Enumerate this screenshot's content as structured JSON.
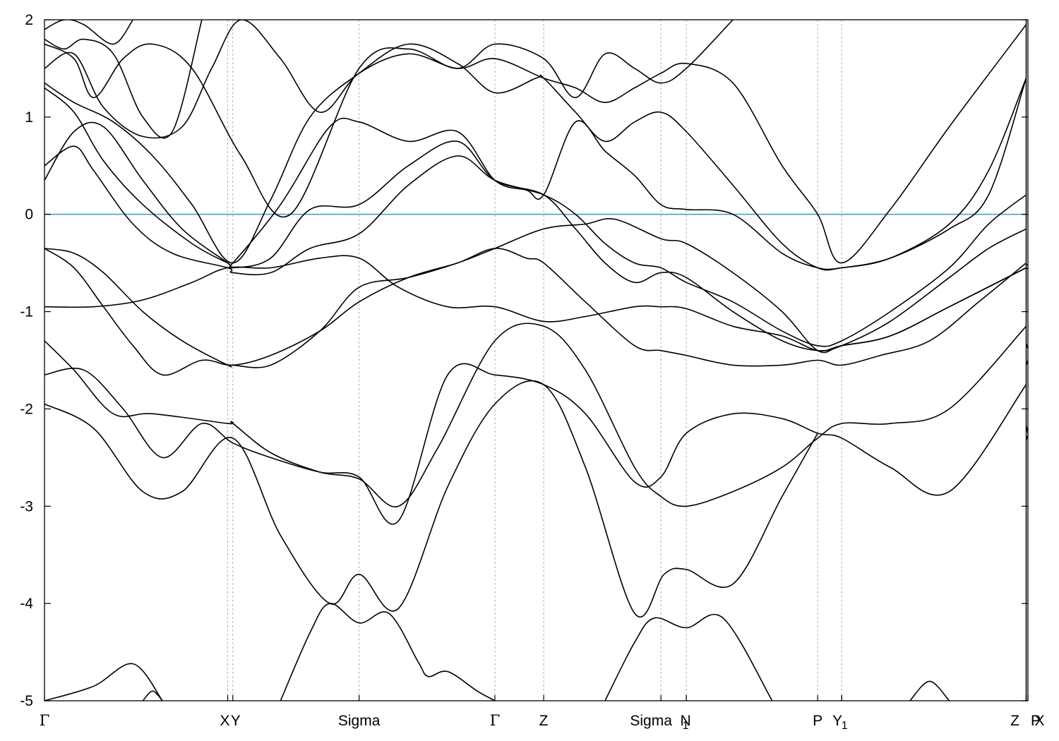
{
  "chart_data": {
    "type": "line",
    "title": "",
    "xlabel": "",
    "ylabel": "",
    "ylim": [
      -5,
      2
    ],
    "xlim": [
      0,
      1
    ],
    "yticks": [
      "2",
      "1",
      "0",
      "-1",
      "-2",
      "-3",
      "-4",
      "-5"
    ],
    "ytick_values": [
      2,
      1,
      0,
      -1,
      -2,
      -3,
      -4,
      -5
    ],
    "kpoints": [
      {
        "label": "Γ",
        "x": 0.0
      },
      {
        "label": "X",
        "x": 0.1863
      },
      {
        "label": "Y",
        "x": 0.1915
      },
      {
        "label": "Sigma",
        "x": 0.3199
      },
      {
        "label": "Γ",
        "x": 0.458
      },
      {
        "label": "Z",
        "x": 0.5076
      },
      {
        "label": "Sigma",
        "x": 0.6268
      },
      {
        "label": "N",
        "x": 0.6526
      },
      {
        "label": "1",
        "x": 0.6526
      },
      {
        "label": "P",
        "x": 0.7862
      },
      {
        "label": "Y",
        "x": 0.8106
      },
      {
        "label": "1",
        "x": 0.8106
      },
      {
        "label": "Z",
        "x": 0.9982
      },
      {
        "label": "X",
        "x": 0.9982
      },
      {
        "label": "P",
        "x": 1.0
      }
    ],
    "fermi_level": 0,
    "grid": false,
    "series": [
      {
        "x": [
          0,
          0.03,
          0.06,
          0.09,
          0.12,
          0.16,
          0.1915,
          0.23,
          0.28,
          0.3199,
          0.37,
          0.42,
          0.458,
          0.49,
          0.5076,
          0.55,
          0.6,
          0.6268,
          0.6526,
          0.7,
          0.75,
          0.7862,
          0.8106,
          0.85,
          0.9,
          0.95,
          0.9982
        ],
        "y": [
          -0.35,
          -0.55,
          -0.95,
          -1.35,
          -1.65,
          -1.5,
          -1.55,
          -1.45,
          -1.2,
          -0.9,
          -0.65,
          -0.5,
          -0.35,
          -0.45,
          -0.5,
          -0.9,
          -1.35,
          -1.4,
          -1.45,
          -1.55,
          -1.55,
          -1.5,
          -1.55,
          -1.45,
          -1.3,
          -0.9,
          -0.5
        ]
      },
      {
        "x": [
          0,
          0.03,
          0.06,
          0.1,
          0.14,
          0.1863,
          0.1915,
          0.23,
          0.28,
          0.3199,
          0.37,
          0.42,
          0.458,
          0.5076,
          0.55,
          0.58,
          0.6268,
          0.6526,
          0.7,
          0.75,
          0.7862,
          0.8106,
          0.86,
          0.92,
          0.9982
        ],
        "y": [
          -0.35,
          -0.4,
          -0.6,
          -1.0,
          -1.3,
          -1.55,
          -1.55,
          -1.55,
          -1.2,
          -0.75,
          -0.65,
          -0.5,
          -0.35,
          -0.15,
          -0.1,
          -0.05,
          -0.25,
          -0.3,
          -0.6,
          -1.0,
          -1.4,
          -1.35,
          -1.25,
          -0.95,
          -0.55
        ]
      },
      {
        "x": [
          0,
          0.05,
          0.1,
          0.15,
          0.1863,
          0.23,
          0.28,
          0.3199,
          0.36,
          0.41,
          0.458,
          0.5076,
          0.55,
          0.6,
          0.6268,
          0.6526,
          0.7,
          0.75,
          0.7862,
          0.8106,
          0.86,
          0.92,
          0.9982
        ],
        "y": [
          -0.95,
          -0.95,
          -0.88,
          -0.7,
          -0.55,
          -0.55,
          -0.45,
          -0.45,
          -0.75,
          -0.95,
          -0.95,
          -1.1,
          -1.05,
          -0.95,
          -0.95,
          -0.97,
          -1.15,
          -1.25,
          -1.4,
          -1.35,
          -1.25,
          -0.95,
          -0.55
        ]
      },
      {
        "x": [
          0,
          0.03,
          0.07,
          0.11,
          0.1863,
          0.1915,
          0.23,
          0.28,
          0.3199,
          0.36,
          0.4,
          0.458,
          0.5076,
          0.55,
          0.6,
          0.6268,
          0.6526,
          0.7,
          0.75,
          0.7862,
          0.8106,
          0.86,
          0.92,
          0.9982
        ],
        "y": [
          -1.3,
          -1.6,
          -2.05,
          -2.05,
          -2.15,
          -2.15,
          -2.45,
          -2.65,
          -2.72,
          -3.0,
          -2.4,
          -1.3,
          -1.15,
          -1.6,
          -2.6,
          -2.9,
          -3.0,
          -2.85,
          -2.6,
          -2.3,
          -2.15,
          -2.15,
          -2.0,
          -1.15
        ]
      },
      {
        "x": [
          0,
          0.04,
          0.08,
          0.12,
          0.16,
          0.1915,
          0.23,
          0.28,
          0.3199,
          0.36,
          0.41,
          0.458,
          0.5076,
          0.55,
          0.6,
          0.6268,
          0.6526,
          0.7,
          0.75,
          0.7862,
          0.8106,
          0.86,
          0.92,
          0.9982
        ],
        "y": [
          -1.65,
          -1.6,
          -2.0,
          -2.5,
          -2.15,
          -2.35,
          -2.5,
          -2.65,
          -2.7,
          -3.15,
          -1.65,
          -1.65,
          -1.75,
          -2.05,
          -2.75,
          -2.7,
          -2.25,
          -2.05,
          -2.1,
          -2.25,
          -2.3,
          -2.6,
          -2.85,
          -1.75
        ]
      },
      {
        "x": [
          0,
          0.05,
          0.1,
          0.14,
          0.1915,
          0.24,
          0.29,
          0.3199,
          0.36,
          0.41,
          0.458,
          0.5076,
          0.55,
          0.6,
          0.63,
          0.6526,
          0.7,
          0.75,
          0.7862
        ],
        "y": [
          -1.95,
          -2.2,
          -2.85,
          -2.85,
          -2.3,
          -3.3,
          -4.0,
          -3.7,
          -4.05,
          -2.8,
          -1.95,
          -1.75,
          -2.6,
          -4.1,
          -3.7,
          -3.65,
          -3.8,
          -2.9,
          -2.25
        ]
      },
      {
        "x": [
          0,
          0.03,
          0.06,
          0.1,
          0.14,
          0.1863,
          0.1915,
          0.23,
          0.27,
          0.3199,
          0.37,
          0.42,
          0.458,
          0.5076,
          0.54,
          0.57,
          0.6,
          0.6268,
          0.6526,
          0.7,
          0.75,
          0.7862,
          0.8106,
          0.86,
          0.92,
          0.96,
          0.9982
        ],
        "y": [
          0.35,
          0.85,
          0.9,
          0.35,
          -0.15,
          -0.5,
          -0.55,
          -0.45,
          0.05,
          0.1,
          0.5,
          0.75,
          0.35,
          0.2,
          -0.15,
          -0.5,
          -0.7,
          -0.6,
          -0.65,
          -1.0,
          -1.3,
          -1.4,
          -1.35,
          -1.1,
          -0.65,
          -0.35,
          -0.15
        ]
      },
      {
        "x": [
          0,
          0.03,
          0.05,
          0.09,
          0.13,
          0.1863,
          0.1915,
          0.23,
          0.27,
          0.3199,
          0.37,
          0.42,
          0.458,
          0.5076,
          0.54,
          0.57,
          0.6,
          0.6268,
          0.6526,
          0.7,
          0.75,
          0.7862,
          0.8106,
          0.86,
          0.92,
          0.96,
          0.9982
        ],
        "y": [
          0.5,
          0.7,
          0.45,
          -0.1,
          -0.4,
          -0.55,
          -0.6,
          -0.6,
          -0.35,
          -0.2,
          0.3,
          0.6,
          0.35,
          0.2,
          0.0,
          -0.3,
          -0.5,
          -0.55,
          -0.7,
          -0.9,
          -1.2,
          -1.35,
          -1.3,
          -1.0,
          -0.55,
          -0.1,
          0.2
        ]
      },
      {
        "x": [
          0,
          0.03,
          0.06,
          0.1,
          0.15,
          0.1863,
          0.1915,
          0.24,
          0.29,
          0.3199,
          0.37,
          0.42,
          0.458,
          0.49,
          0.5076,
          0.54,
          0.57,
          0.6,
          0.6268,
          0.6526,
          0.7,
          0.75,
          0.7862,
          0.8106,
          0.86,
          0.92,
          0.96,
          0.9982
        ],
        "y": [
          1.3,
          1.05,
          0.55,
          0.1,
          -0.3,
          -0.5,
          -0.5,
          0.1,
          0.9,
          0.95,
          0.75,
          0.85,
          0.35,
          0.25,
          0.2,
          0.95,
          0.65,
          0.4,
          0.1,
          0.05,
          0.0,
          -0.4,
          -0.55,
          -0.55,
          -0.45,
          -0.15,
          0.2,
          1.4
        ]
      },
      {
        "x": [
          0,
          0.03,
          0.07,
          0.11,
          0.15,
          0.1915,
          0.23,
          0.27,
          0.3199,
          0.37,
          0.42,
          0.458,
          0.5,
          0.5076,
          0.54,
          0.57,
          0.6,
          0.6268,
          0.6526,
          0.7,
          0.75,
          0.7862,
          0.8106,
          0.86,
          0.92,
          0.96,
          0.9982
        ],
        "y": [
          1.35,
          1.15,
          0.95,
          0.6,
          0.1,
          -0.5,
          0.15,
          1.0,
          1.45,
          1.75,
          1.55,
          1.25,
          1.4,
          1.4,
          1.05,
          0.75,
          0.95,
          1.05,
          0.85,
          0.3,
          -0.3,
          -0.55,
          -0.55,
          -0.45,
          -0.1,
          0.45,
          1.4
        ]
      },
      {
        "x": [
          0,
          0.03,
          0.06,
          0.1,
          0.14,
          0.17,
          0.2,
          0.24,
          0.28,
          0.3199,
          0.37,
          0.42,
          0.458,
          0.5076,
          0.54,
          0.57,
          0.6,
          0.6268,
          0.6526,
          0.7,
          0.75,
          0.7862,
          0.8106,
          0.86,
          0.92,
          0.9982
        ],
        "y": [
          1.5,
          1.65,
          1.1,
          0.8,
          0.9,
          1.5,
          2.0,
          1.6,
          1.05,
          1.45,
          1.65,
          1.5,
          1.6,
          1.4,
          1.3,
          1.15,
          1.3,
          1.45,
          1.55,
          1.35,
          0.5,
          0.0,
          -0.5,
          0.05,
          0.9,
          1.95
        ]
      },
      {
        "x": [
          0,
          0.03,
          0.05,
          0.08,
          0.11,
          0.15,
          0.2,
          0.25,
          0.3199,
          0.37,
          0.42,
          0.458,
          0.5076,
          0.54,
          0.57,
          0.6,
          0.6268,
          0.6526,
          0.7
        ],
        "y": [
          1.75,
          1.6,
          1.2,
          1.6,
          1.75,
          1.5,
          0.6,
          0.0,
          1.5,
          1.7,
          1.5,
          1.75,
          1.6,
          1.2,
          1.65,
          1.5,
          1.35,
          1.5,
          2.0
        ]
      },
      {
        "x": [
          0,
          0.02,
          0.04,
          0.07,
          0.1,
          0.13,
          0.16
        ],
        "y": [
          1.8,
          1.7,
          1.8,
          1.65,
          1.0,
          0.85,
          2.0
        ]
      },
      {
        "x": [
          0,
          0.02,
          0.04,
          0.07,
          0.09
        ],
        "y": [
          1.9,
          2.0,
          1.95,
          1.75,
          2.0
        ]
      },
      {
        "x": [
          0,
          0.05,
          0.09,
          0.12
        ],
        "y": [
          -5.0,
          -4.85,
          -4.62,
          -5.0
        ]
      },
      {
        "x": [
          0.1,
          0.11,
          0.12
        ],
        "y": [
          -5.0,
          -4.9,
          -5.0
        ]
      },
      {
        "x": [
          0.24,
          0.27,
          0.29,
          0.3199,
          0.35,
          0.38,
          0.39,
          0.41,
          0.44,
          0.458
        ],
        "y": [
          -5.0,
          -4.3,
          -4.0,
          -4.2,
          -4.1,
          -4.6,
          -4.75,
          -4.7,
          -4.9,
          -5.0
        ]
      },
      {
        "x": [
          0.57,
          0.6,
          0.62,
          0.6526,
          0.69,
          0.74
        ],
        "y": [
          -5.0,
          -4.4,
          -4.15,
          -4.25,
          -4.15,
          -5.0
        ]
      },
      {
        "x": [
          0.88,
          0.9,
          0.92
        ],
        "y": [
          -5.0,
          -4.8,
          -5.0
        ]
      },
      {
        "x": [
          0.9982,
          1.0
        ],
        "y": [
          -0.52,
          -0.52
        ]
      },
      {
        "x": [
          0.9982,
          1.0
        ],
        "y": [
          -0.56,
          -0.55
        ]
      },
      {
        "x": [
          0.9982,
          1.0
        ],
        "y": [
          -1.33,
          -1.38
        ]
      },
      {
        "x": [
          0.9982,
          1.0
        ],
        "y": [
          -1.55,
          -1.5
        ]
      },
      {
        "x": [
          0.9982,
          1.0
        ],
        "y": [
          -2.17,
          -2.25
        ]
      },
      {
        "x": [
          0.9982,
          1.0
        ],
        "y": [
          -2.32,
          -2.27
        ]
      }
    ]
  },
  "colors": {
    "band": "#000000",
    "fermi": "#4aa3c4",
    "kline": "#b0b0b0",
    "background": "#ffffff"
  }
}
